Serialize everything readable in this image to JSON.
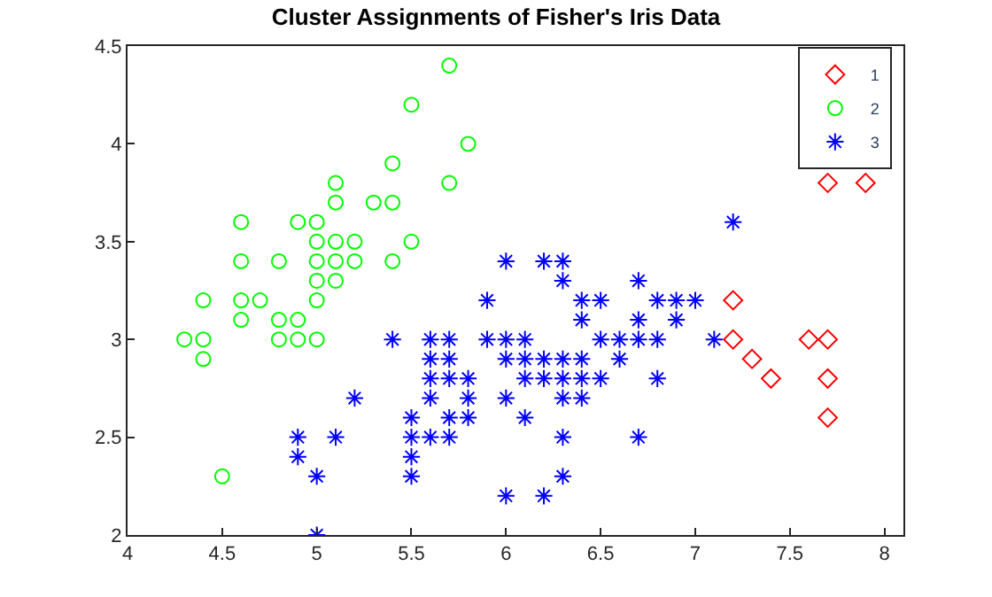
{
  "chart_data": {
    "type": "scatter",
    "title": "Cluster Assignments of Fisher's Iris Data",
    "xlim": [
      4,
      8.1
    ],
    "xticks": [
      4,
      4.5,
      5,
      5.5,
      6,
      6.5,
      7,
      7.5,
      8
    ],
    "ylim": [
      2,
      4.5
    ],
    "yticks": [
      2,
      2.5,
      3,
      3.5,
      4,
      4.5
    ],
    "legend": "top right",
    "series": [
      {
        "name": "1",
        "color": "#ff0000",
        "marker": "diamond",
        "x": [
          7.2,
          7.2,
          7.3,
          7.4,
          7.6,
          7.7,
          7.7,
          7.7,
          7.7,
          7.9
        ],
        "values": [
          3.2,
          3.0,
          2.9,
          2.8,
          3.0,
          3.8,
          3.0,
          2.8,
          2.6,
          3.8
        ]
      },
      {
        "name": "2",
        "color": "#00ff00",
        "marker": "circle",
        "x": [
          5.1,
          4.9,
          4.7,
          4.6,
          5.0,
          5.4,
          4.6,
          5.0,
          4.4,
          4.9,
          5.4,
          4.8,
          4.8,
          4.3,
          5.8,
          5.7,
          5.7,
          5.1,
          5.4,
          5.1,
          4.6,
          5.1,
          5.0,
          5.2,
          5.2,
          4.8,
          5.5,
          5.0,
          4.9,
          4.4,
          5.1,
          5.0,
          4.5,
          4.4,
          4.6,
          5.3,
          5.0,
          5.5
        ],
        "values": [
          3.5,
          3.0,
          3.2,
          3.1,
          3.6,
          3.9,
          3.4,
          3.4,
          2.9,
          3.1,
          3.7,
          3.4,
          3.0,
          3.0,
          4.0,
          4.4,
          3.8,
          3.8,
          3.4,
          3.7,
          3.6,
          3.3,
          3.0,
          3.5,
          3.4,
          3.1,
          4.2,
          3.2,
          3.6,
          3.0,
          3.4,
          3.5,
          2.3,
          3.2,
          3.2,
          3.7,
          3.3,
          3.5
        ]
      },
      {
        "name": "3",
        "color": "#0000ff",
        "marker": "cross",
        "x": [
          7.0,
          6.4,
          6.9,
          5.5,
          6.5,
          5.7,
          6.3,
          4.9,
          6.6,
          5.2,
          5.0,
          5.9,
          6.0,
          6.1,
          5.6,
          6.7,
          5.6,
          5.8,
          6.2,
          5.6,
          5.9,
          6.1,
          6.3,
          6.4,
          6.6,
          6.8,
          6.7,
          6.0,
          5.7,
          5.5,
          6.0,
          5.4,
          6.0,
          6.3,
          5.5,
          5.5,
          6.1,
          5.8,
          5.0,
          5.6,
          5.7,
          5.7,
          6.2,
          5.1,
          7.1,
          6.3,
          6.5,
          4.9,
          6.7,
          7.2,
          6.5,
          6.4,
          6.8,
          5.7,
          5.8,
          6.9,
          5.6,
          6.3,
          6.7,
          6.2,
          6.4,
          6.3,
          6.1,
          6.3,
          6.4,
          6.0,
          6.8,
          6.2
        ],
        "values": [
          3.2,
          3.2,
          3.1,
          2.3,
          2.8,
          2.8,
          3.3,
          2.4,
          2.9,
          2.7,
          2.0,
          3.0,
          2.2,
          2.9,
          2.9,
          3.1,
          3.0,
          2.7,
          2.2,
          2.5,
          3.2,
          2.8,
          2.5,
          2.9,
          3.0,
          2.8,
          3.0,
          2.9,
          2.6,
          2.4,
          2.7,
          3.0,
          3.4,
          2.3,
          2.5,
          2.6,
          3.0,
          2.6,
          2.3,
          2.7,
          3.0,
          2.9,
          2.9,
          2.5,
          3.0,
          2.9,
          3.0,
          2.5,
          2.5,
          3.6,
          3.2,
          2.7,
          3.0,
          2.5,
          2.8,
          3.2,
          2.8,
          2.7,
          3.3,
          2.8,
          2.8,
          2.8,
          2.6,
          3.4,
          3.1,
          3.0,
          3.2,
          3.4
        ]
      }
    ]
  }
}
